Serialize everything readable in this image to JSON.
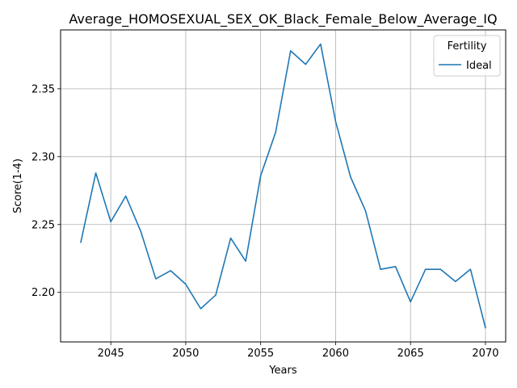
{
  "chart_data": {
    "type": "line",
    "title": "Average_HOMOSEXUAL_SEX_OK_Black_Female_Below_Average_IQ",
    "xlabel": "Years",
    "ylabel": "Score(1-4)",
    "xlim": [
      2041.65,
      2071.35
    ],
    "ylim": [
      2.1635,
      2.3934
    ],
    "x_ticks": [
      2045,
      2050,
      2055,
      2060,
      2065,
      2070
    ],
    "y_ticks": [
      2.2,
      2.25,
      2.3,
      2.35
    ],
    "y_tick_labels": [
      "2.20",
      "2.25",
      "2.30",
      "2.35"
    ],
    "grid": true,
    "legend": {
      "title": "Fertility",
      "placement": "top-right"
    },
    "series": [
      {
        "name": "Ideal",
        "color": "#1f77b4",
        "x": [
          2043,
          2044,
          2045,
          2046,
          2047,
          2048,
          2049,
          2050,
          2051,
          2052,
          2053,
          2054,
          2055,
          2056,
          2057,
          2058,
          2059,
          2060,
          2061,
          2062,
          2063,
          2064,
          2065,
          2066,
          2067,
          2068,
          2069,
          2070
        ],
        "y": [
          2.237,
          2.288,
          2.252,
          2.271,
          2.245,
          2.21,
          2.216,
          2.206,
          2.188,
          2.198,
          2.24,
          2.223,
          2.286,
          2.318,
          2.378,
          2.368,
          2.383,
          2.326,
          2.285,
          2.26,
          2.217,
          2.219,
          2.193,
          2.217,
          2.217,
          2.208,
          2.217,
          2.174
        ]
      }
    ]
  }
}
